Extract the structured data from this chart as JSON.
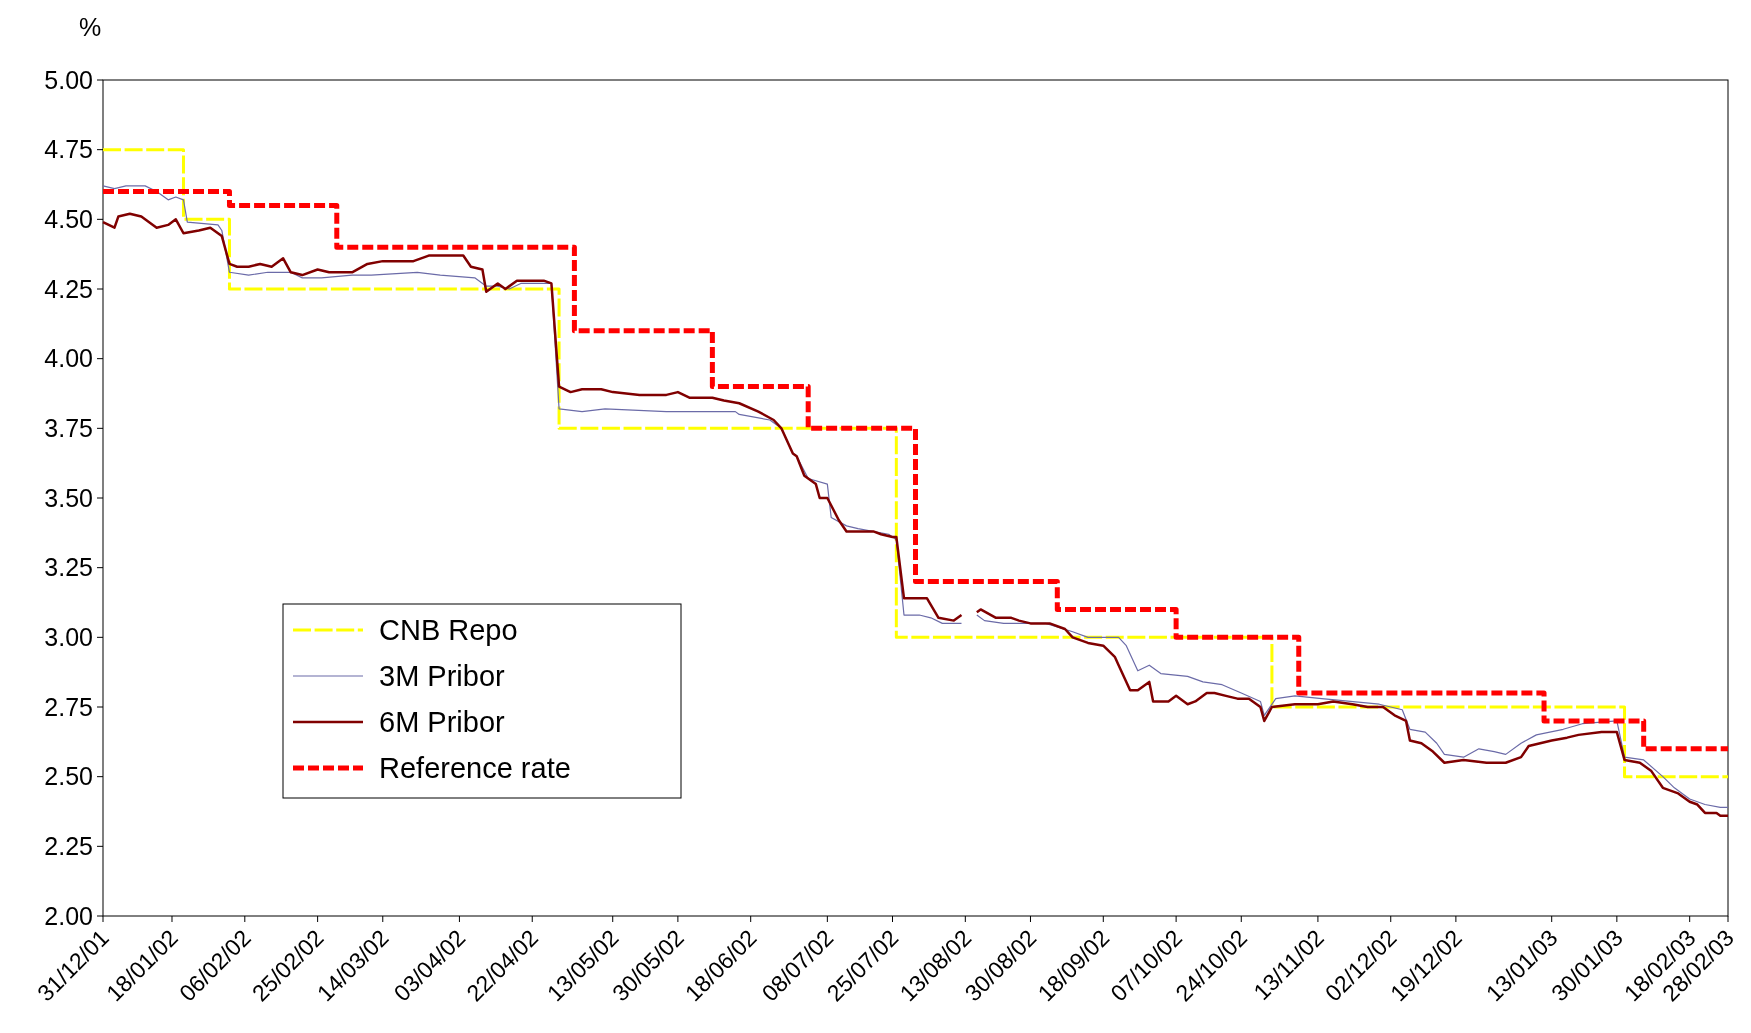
{
  "chart_data": {
    "type": "line",
    "ylabel": "%",
    "ylim": [
      2,
      5
    ],
    "yticks": [
      {
        "value": 2,
        "label": "2.00"
      },
      {
        "value": 2.25,
        "label": "2.25"
      },
      {
        "value": 2.5,
        "label": "2.50"
      },
      {
        "value": 2.75,
        "label": "2.75"
      },
      {
        "value": 3,
        "label": "3.00"
      },
      {
        "value": 3.25,
        "label": "3.25"
      },
      {
        "value": 3.5,
        "label": "3.50"
      },
      {
        "value": 3.75,
        "label": "3.75"
      },
      {
        "value": 4,
        "label": "4.00"
      },
      {
        "value": 4.25,
        "label": "4.25"
      },
      {
        "value": 4.5,
        "label": "4.50"
      },
      {
        "value": 4.75,
        "label": "4.75"
      },
      {
        "value": 5,
        "label": "5.00"
      }
    ],
    "xlim": [
      "2001-12-31",
      "2003-02-28"
    ],
    "xticks": [
      {
        "value": "2001-12-31",
        "label": "31/12/01"
      },
      {
        "value": "2002-01-18",
        "label": "18/01/02"
      },
      {
        "value": "2002-02-06",
        "label": "06/02/02"
      },
      {
        "value": "2002-02-25",
        "label": "25/02/02"
      },
      {
        "value": "2002-03-14",
        "label": "14/03/02"
      },
      {
        "value": "2002-04-03",
        "label": "03/04/02"
      },
      {
        "value": "2002-04-22",
        "label": "22/04/02"
      },
      {
        "value": "2002-05-13",
        "label": "13/05/02"
      },
      {
        "value": "2002-05-30",
        "label": "30/05/02"
      },
      {
        "value": "2002-06-18",
        "label": "18/06/02"
      },
      {
        "value": "2002-07-08",
        "label": "08/07/02"
      },
      {
        "value": "2002-07-25",
        "label": "25/07/02"
      },
      {
        "value": "2002-08-13",
        "label": "13/08/02"
      },
      {
        "value": "2002-08-30",
        "label": "30/08/02"
      },
      {
        "value": "2002-09-18",
        "label": "18/09/02"
      },
      {
        "value": "2002-10-07",
        "label": "07/10/02"
      },
      {
        "value": "2002-10-24",
        "label": "24/10/02"
      },
      {
        "value": "2002-11-13",
        "label": "13/11/02"
      },
      {
        "value": "2002-12-02",
        "label": "02/12/02"
      },
      {
        "value": "2002-12-19",
        "label": "19/12/02"
      },
      {
        "value": "2003-01-13",
        "label": "13/01/03"
      },
      {
        "value": "2003-01-30",
        "label": "30/01/03"
      },
      {
        "value": "2003-02-18",
        "label": "18/02/03"
      },
      {
        "value": "2003-02-28",
        "label": "28/02/03"
      }
    ],
    "grid": false,
    "legend": "bottom left",
    "marker": "none",
    "series": [
      {
        "name": "CNB Repo",
        "type": "step",
        "line_style": "dashed",
        "color": "#ffff00",
        "x": [
          "2001-12-31",
          "2002-01-21",
          "2002-02-02",
          "2002-04-29",
          "2002-07-26",
          "2002-11-01",
          "2003-02-01",
          "2003-02-28"
        ],
        "values": [
          4.75,
          4.5,
          4.25,
          3.75,
          3.0,
          2.75,
          2.5,
          2.5
        ]
      },
      {
        "name": "3M Pribor",
        "line_style": "solid",
        "color": "#6b6ba8",
        "x": [
          "2001-12-31",
          "2002-01-03",
          "2002-01-06",
          "2002-01-11",
          "2002-01-14",
          "2002-01-17",
          "2002-01-19",
          "2002-01-21",
          "2002-01-22",
          "2002-01-30",
          "2002-01-31",
          "2002-02-02",
          "2002-02-07",
          "2002-02-12",
          "2002-02-18",
          "2002-02-21",
          "2002-02-26",
          "2002-03-06",
          "2002-03-11",
          "2002-03-23",
          "2002-03-29",
          "2002-04-07",
          "2002-04-10",
          "2002-04-13",
          "2002-04-16",
          "2002-04-19",
          "2002-04-27",
          "2002-04-29",
          "2002-05-05",
          "2002-05-11",
          "2002-05-27",
          "2002-06-14",
          "2002-06-15",
          "2002-06-23",
          "2002-06-26",
          "2002-06-29",
          "2002-06-30",
          "2002-07-03",
          "2002-07-08",
          "2002-07-09",
          "2002-07-13",
          "2002-07-16",
          "2002-07-24",
          "2002-07-26",
          "2002-07-28",
          "2002-08-01",
          "2002-08-04",
          "2002-08-07",
          "2002-08-12",
          "2002-08-13",
          "2002-08-16",
          "2002-08-18",
          "2002-08-23",
          "2002-09-03",
          "2002-09-10",
          "2002-09-14",
          "2002-09-22",
          "2002-09-24",
          "2002-09-27",
          "2002-09-30",
          "2002-10-03",
          "2002-10-10",
          "2002-10-14",
          "2002-10-19",
          "2002-10-24",
          "2002-10-29",
          "2002-10-30",
          "2002-11-02",
          "2002-11-07",
          "2002-11-14",
          "2002-11-29",
          "2002-12-05",
          "2002-12-07",
          "2002-12-11",
          "2002-12-14",
          "2002-12-16",
          "2002-12-21",
          "2002-12-25",
          "2002-12-29",
          "2003-01-01",
          "2003-01-05",
          "2003-01-09",
          "2003-01-16",
          "2003-01-21",
          "2003-01-30",
          "2003-02-01",
          "2003-02-06",
          "2003-02-11",
          "2003-02-14",
          "2003-02-18",
          "2003-02-22",
          "2003-02-26",
          "2003-02-28"
        ],
        "values": [
          4.62,
          4.61,
          4.62,
          4.62,
          4.6,
          4.57,
          4.58,
          4.57,
          4.49,
          4.48,
          4.46,
          4.31,
          4.3,
          4.31,
          4.31,
          4.29,
          4.29,
          4.3,
          4.3,
          4.31,
          4.3,
          4.29,
          4.26,
          4.26,
          4.25,
          4.27,
          4.27,
          3.82,
          3.81,
          3.82,
          3.81,
          3.81,
          3.8,
          3.78,
          3.75,
          3.66,
          3.65,
          3.57,
          3.55,
          3.43,
          3.4,
          3.39,
          3.37,
          3.35,
          3.08,
          3.08,
          3.07,
          3.05,
          3.05,
          null,
          3.08,
          3.06,
          3.05,
          3.05,
          3.02,
          3.0,
          3.0,
          2.97,
          2.88,
          2.9,
          2.87,
          2.86,
          2.84,
          2.83,
          2.8,
          2.77,
          2.72,
          2.78,
          2.79,
          2.78,
          2.76,
          2.74,
          2.67,
          2.66,
          2.62,
          2.58,
          2.57,
          2.6,
          2.59,
          2.58,
          2.62,
          2.65,
          2.67,
          2.69,
          2.7,
          2.57,
          2.56,
          2.5,
          2.46,
          2.42,
          2.4,
          2.39,
          2.39
        ]
      },
      {
        "name": "6M Pribor",
        "line_style": "solid",
        "color": "#800000",
        "x": [
          "2001-12-31",
          "2002-01-03",
          "2002-01-04",
          "2002-01-07",
          "2002-01-10",
          "2002-01-14",
          "2002-01-17",
          "2002-01-19",
          "2002-01-21",
          "2002-01-25",
          "2002-01-28",
          "2002-01-31",
          "2002-02-02",
          "2002-02-04",
          "2002-02-07",
          "2002-02-10",
          "2002-02-13",
          "2002-02-16",
          "2002-02-18",
          "2002-02-21",
          "2002-02-25",
          "2002-02-28",
          "2002-03-06",
          "2002-03-10",
          "2002-03-14",
          "2002-03-22",
          "2002-03-26",
          "2002-04-04",
          "2002-04-06",
          "2002-04-09",
          "2002-04-10",
          "2002-04-13",
          "2002-04-15",
          "2002-04-18",
          "2002-04-25",
          "2002-04-27",
          "2002-04-29",
          "2002-05-02",
          "2002-05-05",
          "2002-05-10",
          "2002-05-13",
          "2002-05-20",
          "2002-05-27",
          "2002-05-30",
          "2002-06-02",
          "2002-06-08",
          "2002-06-11",
          "2002-06-15",
          "2002-06-20",
          "2002-06-24",
          "2002-06-26",
          "2002-06-29",
          "2002-06-30",
          "2002-07-02",
          "2002-07-05",
          "2002-07-06",
          "2002-07-08",
          "2002-07-11",
          "2002-07-13",
          "2002-07-20",
          "2002-07-22",
          "2002-07-25",
          "2002-07-26",
          "2002-07-28",
          "2002-08-03",
          "2002-08-06",
          "2002-08-10",
          "2002-08-12",
          "2002-08-13",
          "2002-08-16",
          "2002-08-17",
          "2002-08-21",
          "2002-08-25",
          "2002-08-27",
          "2002-08-30",
          "2002-09-04",
          "2002-09-08",
          "2002-09-10",
          "2002-09-14",
          "2002-09-18",
          "2002-09-21",
          "2002-09-22",
          "2002-09-25",
          "2002-09-27",
          "2002-09-30",
          "2002-10-01",
          "2002-10-05",
          "2002-10-07",
          "2002-10-10",
          "2002-10-12",
          "2002-10-15",
          "2002-10-17",
          "2002-10-20",
          "2002-10-23",
          "2002-10-26",
          "2002-10-29",
          "2002-10-30",
          "2002-11-01",
          "2002-11-07",
          "2002-11-13",
          "2002-11-17",
          "2002-11-22",
          "2002-11-26",
          "2002-11-30",
          "2002-12-03",
          "2002-12-06",
          "2002-12-07",
          "2002-12-10",
          "2002-12-13",
          "2002-12-16",
          "2002-12-21",
          "2002-12-27",
          "2003-01-01",
          "2003-01-05",
          "2003-01-07",
          "2003-01-13",
          "2003-01-17",
          "2003-01-20",
          "2003-01-26",
          "2003-01-30",
          "2003-02-01",
          "2003-02-05",
          "2003-02-08",
          "2003-02-11",
          "2003-02-15",
          "2003-02-18",
          "2003-02-20",
          "2003-02-22",
          "2003-02-25",
          "2003-02-26",
          "2003-02-28"
        ],
        "values": [
          4.49,
          4.47,
          4.51,
          4.52,
          4.51,
          4.47,
          4.48,
          4.5,
          4.45,
          4.46,
          4.47,
          4.44,
          4.34,
          4.33,
          4.33,
          4.34,
          4.33,
          4.36,
          4.31,
          4.3,
          4.32,
          4.31,
          4.31,
          4.34,
          4.35,
          4.35,
          4.37,
          4.37,
          4.33,
          4.32,
          4.24,
          4.27,
          4.25,
          4.28,
          4.28,
          4.27,
          3.9,
          3.88,
          3.89,
          3.89,
          3.88,
          3.87,
          3.87,
          3.88,
          3.86,
          3.86,
          3.85,
          3.84,
          3.81,
          3.78,
          3.75,
          3.66,
          3.65,
          3.58,
          3.55,
          3.5,
          3.5,
          3.42,
          3.38,
          3.38,
          3.37,
          3.36,
          3.36,
          3.14,
          3.14,
          3.07,
          3.06,
          3.08,
          null,
          3.09,
          3.1,
          3.07,
          3.07,
          3.06,
          3.05,
          3.05,
          3.03,
          3.0,
          2.98,
          2.97,
          2.93,
          2.9,
          2.81,
          2.81,
          2.84,
          2.77,
          2.77,
          2.79,
          2.76,
          2.77,
          2.8,
          2.8,
          2.79,
          2.78,
          2.78,
          2.75,
          2.7,
          2.75,
          2.76,
          2.76,
          2.77,
          2.76,
          2.75,
          2.75,
          2.72,
          2.7,
          2.63,
          2.62,
          2.59,
          2.55,
          2.56,
          2.55,
          2.55,
          2.57,
          2.61,
          2.63,
          2.64,
          2.65,
          2.66,
          2.66,
          2.56,
          2.55,
          2.52,
          2.46,
          2.44,
          2.41,
          2.4,
          2.37,
          2.37,
          2.36,
          2.36
        ]
      },
      {
        "name": "Reference rate",
        "type": "step",
        "line_style": "dotted",
        "color": "#ff0000",
        "x": [
          "2001-12-31",
          "2002-02-02",
          "2002-03-02",
          "2002-05-03",
          "2002-06-08",
          "2002-07-03",
          "2002-07-31",
          "2002-09-06",
          "2002-10-07",
          "2002-11-08",
          "2003-01-11",
          "2003-02-06",
          "2003-02-28"
        ],
        "values": [
          4.6,
          4.55,
          4.4,
          4.1,
          3.9,
          3.75,
          3.2,
          3.1,
          3.0,
          2.8,
          2.7,
          2.6,
          2.6
        ]
      }
    ]
  }
}
